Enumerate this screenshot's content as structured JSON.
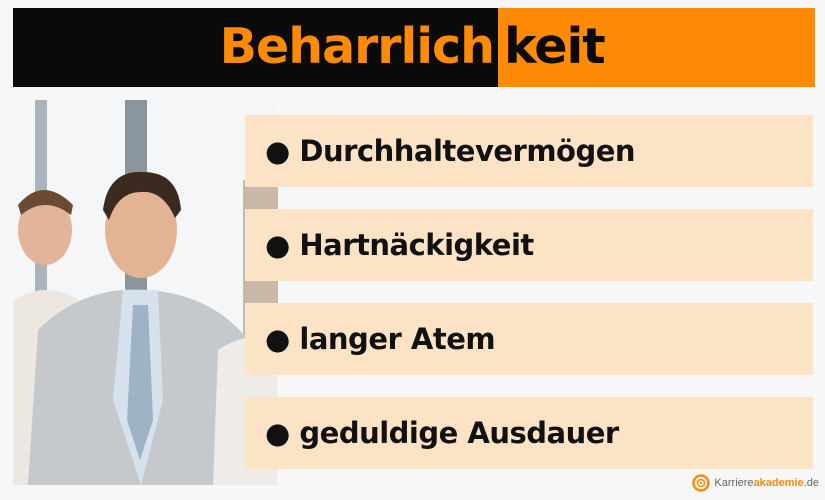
{
  "header": {
    "title_part1": "Beharrlich",
    "title_part2": "keit",
    "colors": {
      "dark": "#0b0a08",
      "accent": "#ff8a05"
    }
  },
  "items": [
    {
      "label": "● Durchhaltevermögen"
    },
    {
      "label": "● Hartnäckigkeit"
    },
    {
      "label": "● langer Atem"
    },
    {
      "label": "● geduldige Ausdauer"
    }
  ],
  "logo": {
    "part1": "Karriere",
    "part2": "akademie",
    "part3": ".de"
  },
  "box_color": "#fde3c5"
}
